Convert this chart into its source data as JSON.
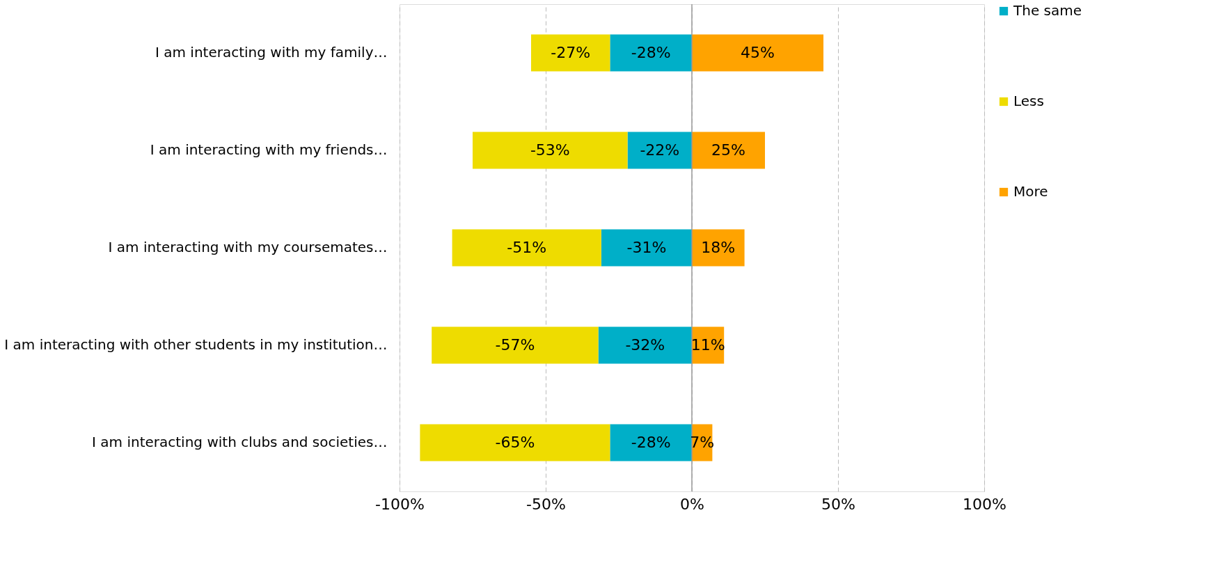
{
  "chart_data": {
    "type": "bar",
    "orientation": "horizontal",
    "stacked": true,
    "categories": [
      "I am interacting with my family…",
      "I am interacting with my friends…",
      "I am interacting with my coursemates…",
      "I am interacting with other students in my institution…",
      "I am interacting with clubs and societies…"
    ],
    "series": [
      {
        "name": "The same",
        "color": "#00afc8",
        "values": [
          -28,
          -22,
          -31,
          -32,
          -28
        ],
        "value_labels": [
          "-28%",
          "-22%",
          "-31%",
          "-32%",
          "-28%"
        ]
      },
      {
        "name": "Less",
        "color": "#eedc00",
        "values": [
          -27,
          -53,
          -51,
          -57,
          -65
        ],
        "value_labels": [
          "-27%",
          "-53%",
          "-51%",
          "-57%",
          "-65%"
        ]
      },
      {
        "name": "More",
        "color": "#ffa300",
        "values": [
          45,
          25,
          18,
          11,
          7
        ],
        "value_labels": [
          "45%",
          "25%",
          "18%",
          "11%",
          "7%"
        ]
      }
    ],
    "xlim": [
      -100,
      100
    ],
    "xticks": [
      {
        "value": -100,
        "label": "-100%"
      },
      {
        "value": -50,
        "label": "-50%"
      },
      {
        "value": 0,
        "label": "0%"
      },
      {
        "value": 50,
        "label": "50%"
      },
      {
        "value": 100,
        "label": "100%"
      }
    ],
    "grid": "x",
    "legend": "right"
  }
}
